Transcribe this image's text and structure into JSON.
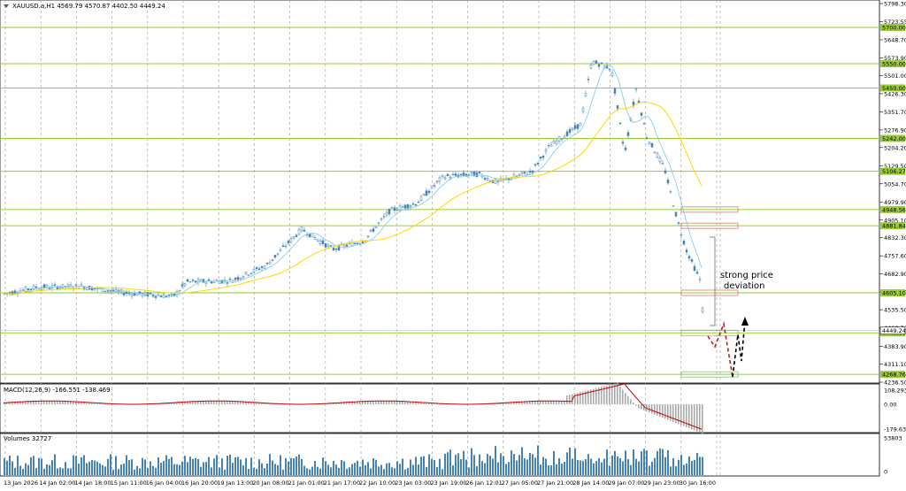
{
  "chart_data": {
    "type": "candlestick",
    "symbol_header": "XAUUSD.a,H1  4569.79 4570.87 4402.50 4449.24",
    "y_ticks": [
      "5798.30",
      "5723.55",
      "5648.70",
      "5573.90",
      "5501.00",
      "5426.30",
      "5351.70",
      "5276.90",
      "5204.20",
      "5129.50",
      "5054.70",
      "4979.90",
      "4905.10",
      "4832.30",
      "4757.60",
      "4682.90",
      "4608.10",
      "4535.50",
      "4460.70",
      "4383.90",
      "4311.10",
      "4236.50"
    ],
    "x_ticks": [
      "13 Jan 2026",
      "14 Jan 02:00",
      "14 Jan 18:00",
      "15 Jan 11:00",
      "16 Jan 04:00",
      "16 Jan 20:00",
      "19 Jan 13:00",
      "20 Jan 08:00",
      "21 Jan 01:00",
      "21 Jan 17:00",
      "22 Jan 10:00",
      "23 Jan 03:00",
      "23 Jan 19:00",
      "26 Jan 12:01",
      "27 Jan 05:00",
      "27 Jan 21:00",
      "28 Jan 14:00",
      "29 Jan 07:00",
      "29 Jan 23:00",
      "30 Jan 16:00"
    ],
    "levels": [
      "5700.00",
      "5550.00",
      "5450.00",
      "5242.00",
      "5106.27",
      "4948.56",
      "4881.84",
      "4605.10",
      "4440.00",
      "4268.76"
    ],
    "current_price": "4449.24",
    "annotation_line1": "strong price",
    "annotation_line2": "deviation",
    "macd": {
      "label": "MACD(12,26,9) -166.551 -138.469",
      "ticks": [
        "108.293",
        "0.00",
        "-179.639"
      ]
    },
    "volumes": {
      "label": "Volumes 32727",
      "ticks": [
        "53803",
        "0"
      ]
    },
    "colors": {
      "level": "#9acd32",
      "fast_ma": "#87ceeb",
      "slow_ma": "#ffd700",
      "candle": "#4682b4",
      "zone": "#d9534f",
      "macd_signal": "#cc0000",
      "volume_bar": "#4682b4"
    }
  }
}
